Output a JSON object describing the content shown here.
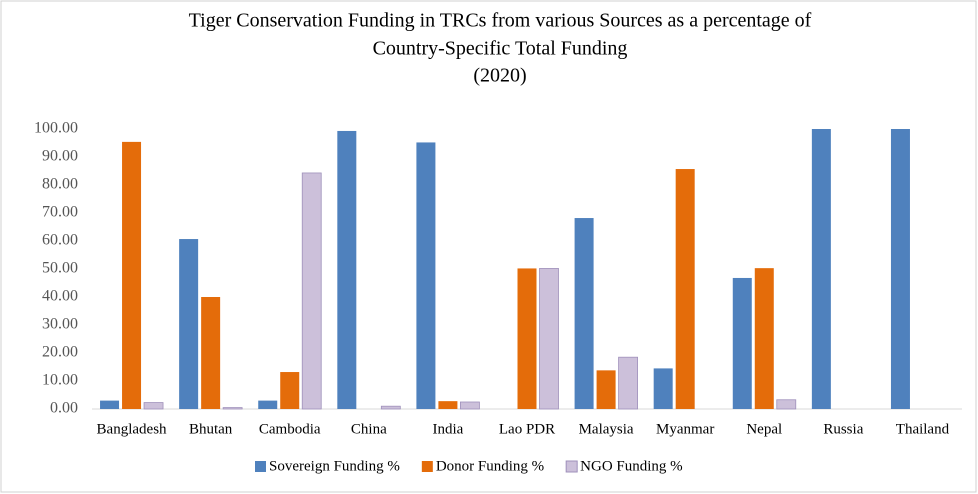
{
  "chart_data": {
    "type": "bar",
    "title": [
      "Tiger Conservation Funding  in TRCs from various Sources as a percentage of",
      "Country-Specific Total Funding",
      "(2020)"
    ],
    "categories": [
      "Bangladesh",
      "Bhutan",
      "Cambodia",
      "China",
      "India",
      "Lao PDR",
      "Malaysia",
      "Myanmar",
      "Nepal",
      "Russia",
      "Thailand"
    ],
    "series": [
      {
        "name": "Sovereign Funding %",
        "color": "#4f81bd",
        "values": [
          3,
          60.7,
          3,
          99.3,
          95.2,
          0,
          68.2,
          14.5,
          46.8,
          100,
          100
        ]
      },
      {
        "name": "Donor Funding %",
        "color": "#e46c0a",
        "values": [
          95.4,
          40,
          13.2,
          0,
          2.8,
          50.2,
          13.8,
          85.7,
          50.3,
          0,
          0
        ]
      },
      {
        "name": "NGO Funding %",
        "color": "#ccc0da",
        "values": [
          2.3,
          0.5,
          84.3,
          1,
          2.5,
          50.2,
          18.5,
          0,
          3.3,
          0,
          0
        ]
      }
    ],
    "ylim": [
      0,
      100
    ],
    "yticks": [
      {
        "value": 0,
        "label": "0.00"
      },
      {
        "value": 10,
        "label": "10.00"
      },
      {
        "value": 20,
        "label": "20.00"
      },
      {
        "value": 30,
        "label": "30.00"
      },
      {
        "value": 40,
        "label": "40.00"
      },
      {
        "value": 50,
        "label": "50.00"
      },
      {
        "value": 60,
        "label": "60.00"
      },
      {
        "value": 70,
        "label": "70.00"
      },
      {
        "value": 80,
        "label": "80.00"
      },
      {
        "value": 90,
        "label": "90.00"
      },
      {
        "value": 100,
        "label": "100.00"
      }
    ],
    "grid": false,
    "legend": "bottom"
  }
}
